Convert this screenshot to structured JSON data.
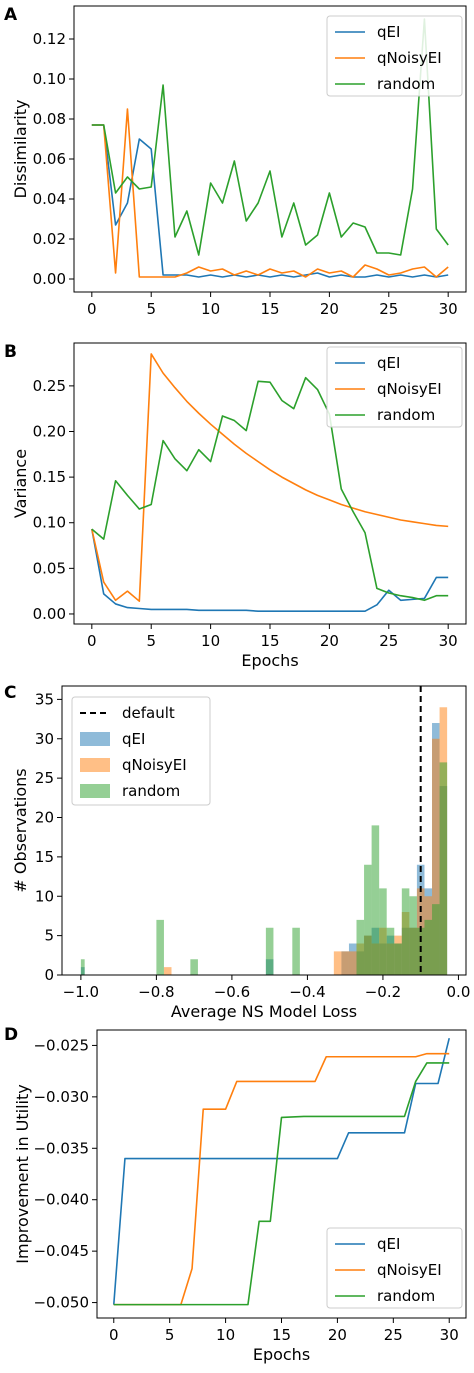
{
  "chart_data": [
    {
      "panel_label": "A",
      "type": "line",
      "xlabel": "",
      "ylabel": "Dissimilarity",
      "xlim": [
        -1.5,
        31.5
      ],
      "ylim": [
        -0.0065,
        0.1365
      ],
      "xticks": [
        0,
        5,
        10,
        15,
        20,
        25,
        30
      ],
      "yticks": [
        0.0,
        0.02,
        0.04,
        0.06,
        0.08,
        0.1,
        0.12
      ],
      "ytick_labels": [
        "0.00",
        "0.02",
        "0.04",
        "0.06",
        "0.08",
        "0.10",
        "0.12"
      ],
      "legend_position": "top-right",
      "series": [
        {
          "name": "qEI",
          "color": "#1f77b4",
          "x": [
            0,
            1,
            2,
            3,
            4,
            5,
            6,
            7,
            8,
            9,
            10,
            11,
            12,
            13,
            14,
            15,
            16,
            17,
            18,
            19,
            20,
            21,
            22,
            23,
            24,
            25,
            26,
            27,
            28,
            29,
            30
          ],
          "values": [
            0.077,
            0.077,
            0.027,
            0.038,
            0.07,
            0.065,
            0.002,
            0.002,
            0.002,
            0.001,
            0.002,
            0.001,
            0.002,
            0.001,
            0.002,
            0.001,
            0.002,
            0.001,
            0.002,
            0.003,
            0.001,
            0.002,
            0.001,
            0.001,
            0.002,
            0.001,
            0.002,
            0.001,
            0.002,
            0.001,
            0.002
          ]
        },
        {
          "name": "qNoisyEI",
          "color": "#ff7f0e",
          "x": [
            0,
            1,
            2,
            3,
            4,
            5,
            6,
            7,
            8,
            9,
            10,
            11,
            12,
            13,
            14,
            15,
            16,
            17,
            18,
            19,
            20,
            21,
            22,
            23,
            24,
            25,
            26,
            27,
            28,
            29,
            30
          ],
          "values": [
            0.077,
            0.077,
            0.003,
            0.085,
            0.001,
            0.001,
            0.001,
            0.001,
            0.003,
            0.006,
            0.004,
            0.005,
            0.002,
            0.004,
            0.002,
            0.005,
            0.003,
            0.004,
            0.001,
            0.005,
            0.003,
            0.004,
            0.001,
            0.007,
            0.005,
            0.002,
            0.003,
            0.005,
            0.006,
            0.001,
            0.006
          ]
        },
        {
          "name": "random",
          "color": "#2ca02c",
          "x": [
            0,
            1,
            2,
            3,
            4,
            5,
            6,
            7,
            8,
            9,
            10,
            11,
            12,
            13,
            14,
            15,
            16,
            17,
            18,
            19,
            20,
            21,
            22,
            23,
            24,
            25,
            26,
            27,
            28,
            29,
            30
          ],
          "values": [
            0.077,
            0.077,
            0.043,
            0.051,
            0.045,
            0.046,
            0.097,
            0.021,
            0.034,
            0.012,
            0.048,
            0.038,
            0.059,
            0.029,
            0.038,
            0.054,
            0.021,
            0.038,
            0.017,
            0.022,
            0.043,
            0.021,
            0.028,
            0.026,
            0.013,
            0.013,
            0.012,
            0.045,
            0.13,
            0.025,
            0.017
          ]
        }
      ]
    },
    {
      "panel_label": "B",
      "type": "line",
      "xlabel": "Epochs",
      "ylabel": "Variance",
      "xlim": [
        -1.5,
        31.5
      ],
      "ylim": [
        -0.011,
        0.297
      ],
      "xticks": [
        0,
        5,
        10,
        15,
        20,
        25,
        30
      ],
      "yticks": [
        0.0,
        0.05,
        0.1,
        0.15,
        0.2,
        0.25
      ],
      "ytick_labels": [
        "0.00",
        "0.05",
        "0.10",
        "0.15",
        "0.20",
        "0.25"
      ],
      "legend_position": "top-right",
      "series": [
        {
          "name": "qEI",
          "color": "#1f77b4",
          "x": [
            0,
            1,
            2,
            3,
            4,
            5,
            6,
            7,
            8,
            9,
            10,
            11,
            12,
            13,
            14,
            15,
            16,
            17,
            18,
            19,
            20,
            21,
            22,
            23,
            24,
            25,
            26,
            27,
            28,
            29,
            30
          ],
          "values": [
            0.093,
            0.022,
            0.011,
            0.007,
            0.006,
            0.005,
            0.005,
            0.005,
            0.005,
            0.004,
            0.004,
            0.004,
            0.004,
            0.004,
            0.003,
            0.003,
            0.003,
            0.003,
            0.003,
            0.003,
            0.003,
            0.003,
            0.003,
            0.003,
            0.01,
            0.026,
            0.015,
            0.016,
            0.017,
            0.04,
            0.04
          ]
        },
        {
          "name": "qNoisyEI",
          "color": "#ff7f0e",
          "x": [
            0,
            1,
            2,
            3,
            4,
            5,
            6,
            7,
            8,
            9,
            10,
            11,
            12,
            13,
            14,
            15,
            16,
            17,
            18,
            19,
            20,
            21,
            22,
            23,
            24,
            25,
            26,
            27,
            28,
            29,
            30
          ],
          "values": [
            0.093,
            0.035,
            0.015,
            0.025,
            0.014,
            0.285,
            0.264,
            0.248,
            0.233,
            0.22,
            0.208,
            0.197,
            0.186,
            0.176,
            0.167,
            0.158,
            0.15,
            0.143,
            0.136,
            0.13,
            0.125,
            0.12,
            0.116,
            0.112,
            0.109,
            0.106,
            0.103,
            0.101,
            0.099,
            0.097,
            0.096
          ]
        },
        {
          "name": "random",
          "color": "#2ca02c",
          "x": [
            0,
            1,
            2,
            3,
            4,
            5,
            6,
            7,
            8,
            9,
            10,
            11,
            12,
            13,
            14,
            15,
            16,
            17,
            18,
            19,
            20,
            21,
            22,
            23,
            24,
            25,
            26,
            27,
            28,
            29,
            30
          ],
          "values": [
            0.093,
            0.082,
            0.146,
            0.13,
            0.115,
            0.12,
            0.19,
            0.17,
            0.157,
            0.18,
            0.167,
            0.217,
            0.212,
            0.201,
            0.255,
            0.254,
            0.234,
            0.225,
            0.259,
            0.246,
            0.219,
            0.137,
            0.112,
            0.089,
            0.028,
            0.023,
            0.02,
            0.018,
            0.015,
            0.02,
            0.02
          ]
        }
      ]
    },
    {
      "panel_label": "C",
      "type": "bar",
      "subtype": "histogram",
      "xlabel": "Average NS Model Loss",
      "ylabel": "# Observations",
      "xlim": [
        -1.05,
        0.02
      ],
      "ylim": [
        0,
        36.7
      ],
      "xticks": [
        -1.0,
        -0.8,
        -0.6,
        -0.4,
        -0.2,
        0.0
      ],
      "xtick_labels": [
        "−1.0",
        "−0.8",
        "−0.6",
        "−0.4",
        "−0.2",
        "0.0"
      ],
      "yticks": [
        0,
        5,
        10,
        15,
        20,
        25,
        30,
        35
      ],
      "legend_position": "top-left",
      "default_line": {
        "name": "default",
        "x": -0.1,
        "style": "dashed",
        "color": "#000000"
      },
      "series": [
        {
          "name": "qEI",
          "color": "#1f77b4",
          "opacity": 0.5,
          "bins": [
            [
              -1.0,
              -0.99,
              1
            ],
            [
              -0.51,
              -0.49,
              2
            ],
            [
              -0.31,
              -0.29,
              3
            ],
            [
              -0.29,
              -0.27,
              4
            ],
            [
              -0.27,
              -0.25,
              3
            ],
            [
              -0.25,
              -0.23,
              5
            ],
            [
              -0.23,
              -0.21,
              6
            ],
            [
              -0.21,
              -0.19,
              4
            ],
            [
              -0.19,
              -0.17,
              5
            ],
            [
              -0.17,
              -0.15,
              4
            ],
            [
              -0.15,
              -0.13,
              6
            ],
            [
              -0.13,
              -0.11,
              6
            ],
            [
              -0.11,
              -0.09,
              14
            ],
            [
              -0.09,
              -0.07,
              11
            ],
            [
              -0.07,
              -0.05,
              32
            ],
            [
              -0.05,
              -0.03,
              24
            ]
          ]
        },
        {
          "name": "qNoisyEI",
          "color": "#ff7f0e",
          "opacity": 0.5,
          "bins": [
            [
              -0.78,
              -0.76,
              1
            ],
            [
              -0.33,
              -0.31,
              3
            ],
            [
              -0.31,
              -0.29,
              3
            ],
            [
              -0.29,
              -0.27,
              3
            ],
            [
              -0.27,
              -0.25,
              4
            ],
            [
              -0.25,
              -0.23,
              5
            ],
            [
              -0.23,
              -0.21,
              4
            ],
            [
              -0.21,
              -0.19,
              6
            ],
            [
              -0.19,
              -0.17,
              4
            ],
            [
              -0.17,
              -0.15,
              5
            ],
            [
              -0.15,
              -0.13,
              8
            ],
            [
              -0.13,
              -0.11,
              6
            ],
            [
              -0.11,
              -0.09,
              11
            ],
            [
              -0.09,
              -0.07,
              10
            ],
            [
              -0.07,
              -0.05,
              30
            ],
            [
              -0.05,
              -0.03,
              34
            ]
          ]
        },
        {
          "name": "random",
          "color": "#2ca02c",
          "opacity": 0.5,
          "bins": [
            [
              -1.0,
              -0.99,
              2
            ],
            [
              -0.8,
              -0.78,
              7
            ],
            [
              -0.71,
              -0.69,
              2
            ],
            [
              -0.51,
              -0.49,
              6
            ],
            [
              -0.44,
              -0.42,
              6
            ],
            [
              -0.27,
              -0.25,
              7
            ],
            [
              -0.25,
              -0.23,
              14
            ],
            [
              -0.23,
              -0.21,
              19
            ],
            [
              -0.21,
              -0.19,
              11
            ],
            [
              -0.19,
              -0.17,
              6
            ],
            [
              -0.17,
              -0.15,
              4
            ],
            [
              -0.15,
              -0.13,
              11
            ],
            [
              -0.13,
              -0.11,
              10
            ],
            [
              -0.11,
              -0.09,
              6
            ],
            [
              -0.09,
              -0.07,
              7
            ],
            [
              -0.07,
              -0.05,
              9
            ],
            [
              -0.05,
              -0.03,
              27
            ]
          ]
        }
      ]
    },
    {
      "panel_label": "D",
      "type": "line",
      "xlabel": "Epochs",
      "ylabel": "Improvement in Utility",
      "xlim": [
        -1.5,
        31.5
      ],
      "ylim": [
        -0.0515,
        -0.0235
      ],
      "xticks": [
        0,
        5,
        10,
        15,
        20,
        25,
        30
      ],
      "yticks": [
        -0.05,
        -0.045,
        -0.04,
        -0.035,
        -0.03,
        -0.025
      ],
      "ytick_labels": [
        "−0.050",
        "−0.045",
        "−0.040",
        "−0.035",
        "−0.030",
        "−0.025"
      ],
      "legend_position": "bottom-right",
      "series": [
        {
          "name": "qEI",
          "color": "#1f77b4",
          "x": [
            0,
            1,
            20,
            21,
            26,
            27,
            28,
            29,
            30
          ],
          "values": [
            -0.0502,
            -0.036,
            -0.036,
            -0.0335,
            -0.0335,
            -0.0287,
            -0.0287,
            -0.0287,
            -0.0243
          ]
        },
        {
          "name": "qNoisyEI",
          "color": "#ff7f0e",
          "x": [
            0,
            6,
            7,
            8,
            10,
            11,
            18,
            19,
            27,
            28,
            30
          ],
          "values": [
            -0.0502,
            -0.0502,
            -0.0467,
            -0.0312,
            -0.0312,
            -0.0285,
            -0.0285,
            -0.0261,
            -0.0261,
            -0.0258,
            -0.0258
          ]
        },
        {
          "name": "random",
          "color": "#2ca02c",
          "x": [
            0,
            12,
            13,
            14,
            15,
            17,
            26,
            27,
            28,
            30
          ],
          "values": [
            -0.0502,
            -0.0502,
            -0.0421,
            -0.0421,
            -0.032,
            -0.0319,
            -0.0319,
            -0.0285,
            -0.0267,
            -0.0267
          ]
        }
      ]
    }
  ]
}
